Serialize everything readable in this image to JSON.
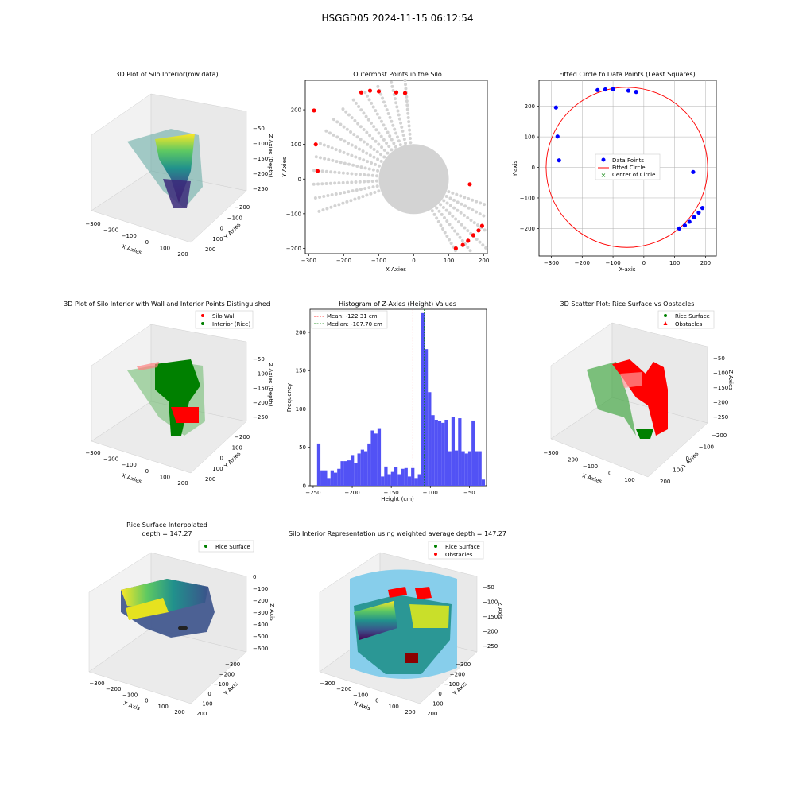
{
  "figure": {
    "suptitle": "HSGGD05 2024-11-15 06:12:54"
  },
  "colors": {
    "red": "#ff0000",
    "blue": "#0000ff",
    "green": "#008000",
    "gray": "#d3d3d3",
    "hist": "#5252f5",
    "skyblue": "#87ceeb",
    "darkred": "#8b0000"
  },
  "chart_data": [
    {
      "type": "scatter3d",
      "title": "3D Plot of Silo Interior(row data)",
      "xlabel": "X Axies",
      "ylabel": "Y Axies",
      "zlabel": "Z Axies (Depth)",
      "xticks": [
        "−300",
        "−200",
        "−100",
        "0",
        "100",
        "200"
      ],
      "yticks": [
        "−200",
        "−100",
        "0",
        "100",
        "200"
      ],
      "zticks": [
        "−50",
        "−100",
        "−150",
        "−200",
        "−250"
      ],
      "colormap": "viridis"
    },
    {
      "type": "scatter",
      "title": "Outermost Points in the Silo",
      "xlabel": "X Axies",
      "ylabel": "Y Axies",
      "xlim": [
        -310,
        210
      ],
      "ylim": [
        -215,
        285
      ],
      "xticks": [
        -300,
        -200,
        -100,
        0,
        100,
        200
      ],
      "yticks": [
        -200,
        -100,
        0,
        100,
        200
      ],
      "outer_points": [
        [
          -150,
          250
        ],
        [
          -125,
          255
        ],
        [
          -100,
          253
        ],
        [
          -50,
          250
        ],
        [
          -25,
          248
        ],
        [
          -285,
          198
        ],
        [
          -280,
          100
        ],
        [
          -275,
          23
        ],
        [
          160,
          -15
        ],
        [
          195,
          -135
        ],
        [
          185,
          -148
        ],
        [
          170,
          -162
        ],
        [
          155,
          -178
        ],
        [
          140,
          -190
        ],
        [
          120,
          -200
        ]
      ]
    },
    {
      "type": "scatter",
      "title": "Fitted Circle to Data Points (Least Squares)",
      "xlabel": "X-axis",
      "ylabel": "Y-axis",
      "xlim": [
        -340,
        235
      ],
      "ylim": [
        -290,
        285
      ],
      "xticks": [
        -300,
        -200,
        -100,
        0,
        100,
        200
      ],
      "yticks": [
        -200,
        -100,
        0,
        100,
        200
      ],
      "legend": [
        "Data Points",
        "Fitted Circle",
        "Center of Circle"
      ],
      "data_points": [
        [
          -150,
          253
        ],
        [
          -125,
          255
        ],
        [
          -100,
          256
        ],
        [
          -50,
          251
        ],
        [
          -25,
          247
        ],
        [
          -285,
          196
        ],
        [
          -280,
          101
        ],
        [
          -275,
          23
        ],
        [
          160,
          -15
        ],
        [
          190,
          -133
        ],
        [
          178,
          -148
        ],
        [
          163,
          -163
        ],
        [
          148,
          -178
        ],
        [
          133,
          -190
        ],
        [
          115,
          -200
        ]
      ],
      "circle": {
        "cx": -55,
        "cy": 0,
        "r": 262
      }
    },
    {
      "type": "scatter3d",
      "title": "3D Plot of Silo Interior with Wall and Interior Points Distinguished",
      "xlabel": "X Axies",
      "ylabel": "Y Axies",
      "zlabel": "Z Axies (Depth)",
      "xticks": [
        "−300",
        "−200",
        "−100",
        "0",
        "100",
        "200"
      ],
      "yticks": [
        "−200",
        "−100",
        "0",
        "100",
        "200"
      ],
      "zticks": [
        "−50",
        "−100",
        "−150",
        "−200",
        "−250"
      ],
      "legend": [
        "Silo Wall",
        "Interior (Rice)"
      ]
    },
    {
      "type": "bar",
      "title": "Histogram of Z-Axies (Height) Values",
      "xlabel": "Height (cm)",
      "ylabel": "Frequency",
      "xlim": [
        -254,
        -28
      ],
      "ylim": [
        0,
        230
      ],
      "xticks": [
        -250,
        -200,
        -150,
        -100,
        -50
      ],
      "yticks": [
        0,
        50,
        100,
        150,
        200
      ],
      "bin_start": -245,
      "bin_width": 4.3,
      "values": [
        55,
        20,
        20,
        10,
        20,
        17,
        22,
        32,
        32,
        33,
        40,
        30,
        42,
        47,
        45,
        55,
        72,
        68,
        75,
        12,
        25,
        15,
        18,
        24,
        15,
        22,
        23,
        12,
        23,
        10,
        15,
        225,
        178,
        122,
        92,
        86,
        84,
        82,
        86,
        45,
        90,
        46,
        88,
        45,
        42,
        45,
        85,
        45,
        45,
        8
      ],
      "mean": -122.31,
      "median": -107.7,
      "legend": [
        "Mean: -122.31 cm",
        "Median: -107.70 cm"
      ]
    },
    {
      "type": "scatter3d",
      "title": "3D Scatter Plot: Rice Surface vs Obstacles",
      "xlabel": "X Axies",
      "ylabel": "Y Axies",
      "zlabel": "Z Axies",
      "xticks": [
        "−300",
        "−200",
        "−100",
        "0",
        "100"
      ],
      "yticks": [
        "−200",
        "−100",
        "0",
        "100",
        "200"
      ],
      "zticks": [
        "−50",
        "−100",
        "−150",
        "−200",
        "−250"
      ],
      "legend": [
        "Rice Surface",
        "Obstacles"
      ]
    },
    {
      "type": "surface3d",
      "title": "Rice Surface Interpolated",
      "subtitle": "depth = 147.27",
      "xlabel": "X Axis",
      "ylabel": "Y Axis",
      "zlabel": "Z Axis",
      "xticks": [
        "−300",
        "−200",
        "−100",
        "0",
        "100",
        "200"
      ],
      "yticks": [
        "−300",
        "−200",
        "−100",
        "0",
        "100",
        "200"
      ],
      "zticks": [
        "0",
        "−100",
        "−200",
        "−300",
        "−400",
        "−500",
        "−600"
      ],
      "legend": [
        "Rice Surface"
      ]
    },
    {
      "type": "surface3d",
      "title": "Silo Interior Representation using weighted average depth = 147.27",
      "xlabel": "X Axis",
      "ylabel": "Y Axis",
      "zlabel": "Z Axis",
      "xticks": [
        "−300",
        "−200",
        "−100",
        "0",
        "100",
        "200"
      ],
      "yticks": [
        "−300",
        "−200",
        "−100",
        "0",
        "100",
        "200"
      ],
      "zticks": [
        "−50",
        "−100",
        "−150",
        "−200",
        "−250"
      ],
      "legend": [
        "Rice Surface",
        "Obstacles"
      ]
    }
  ]
}
